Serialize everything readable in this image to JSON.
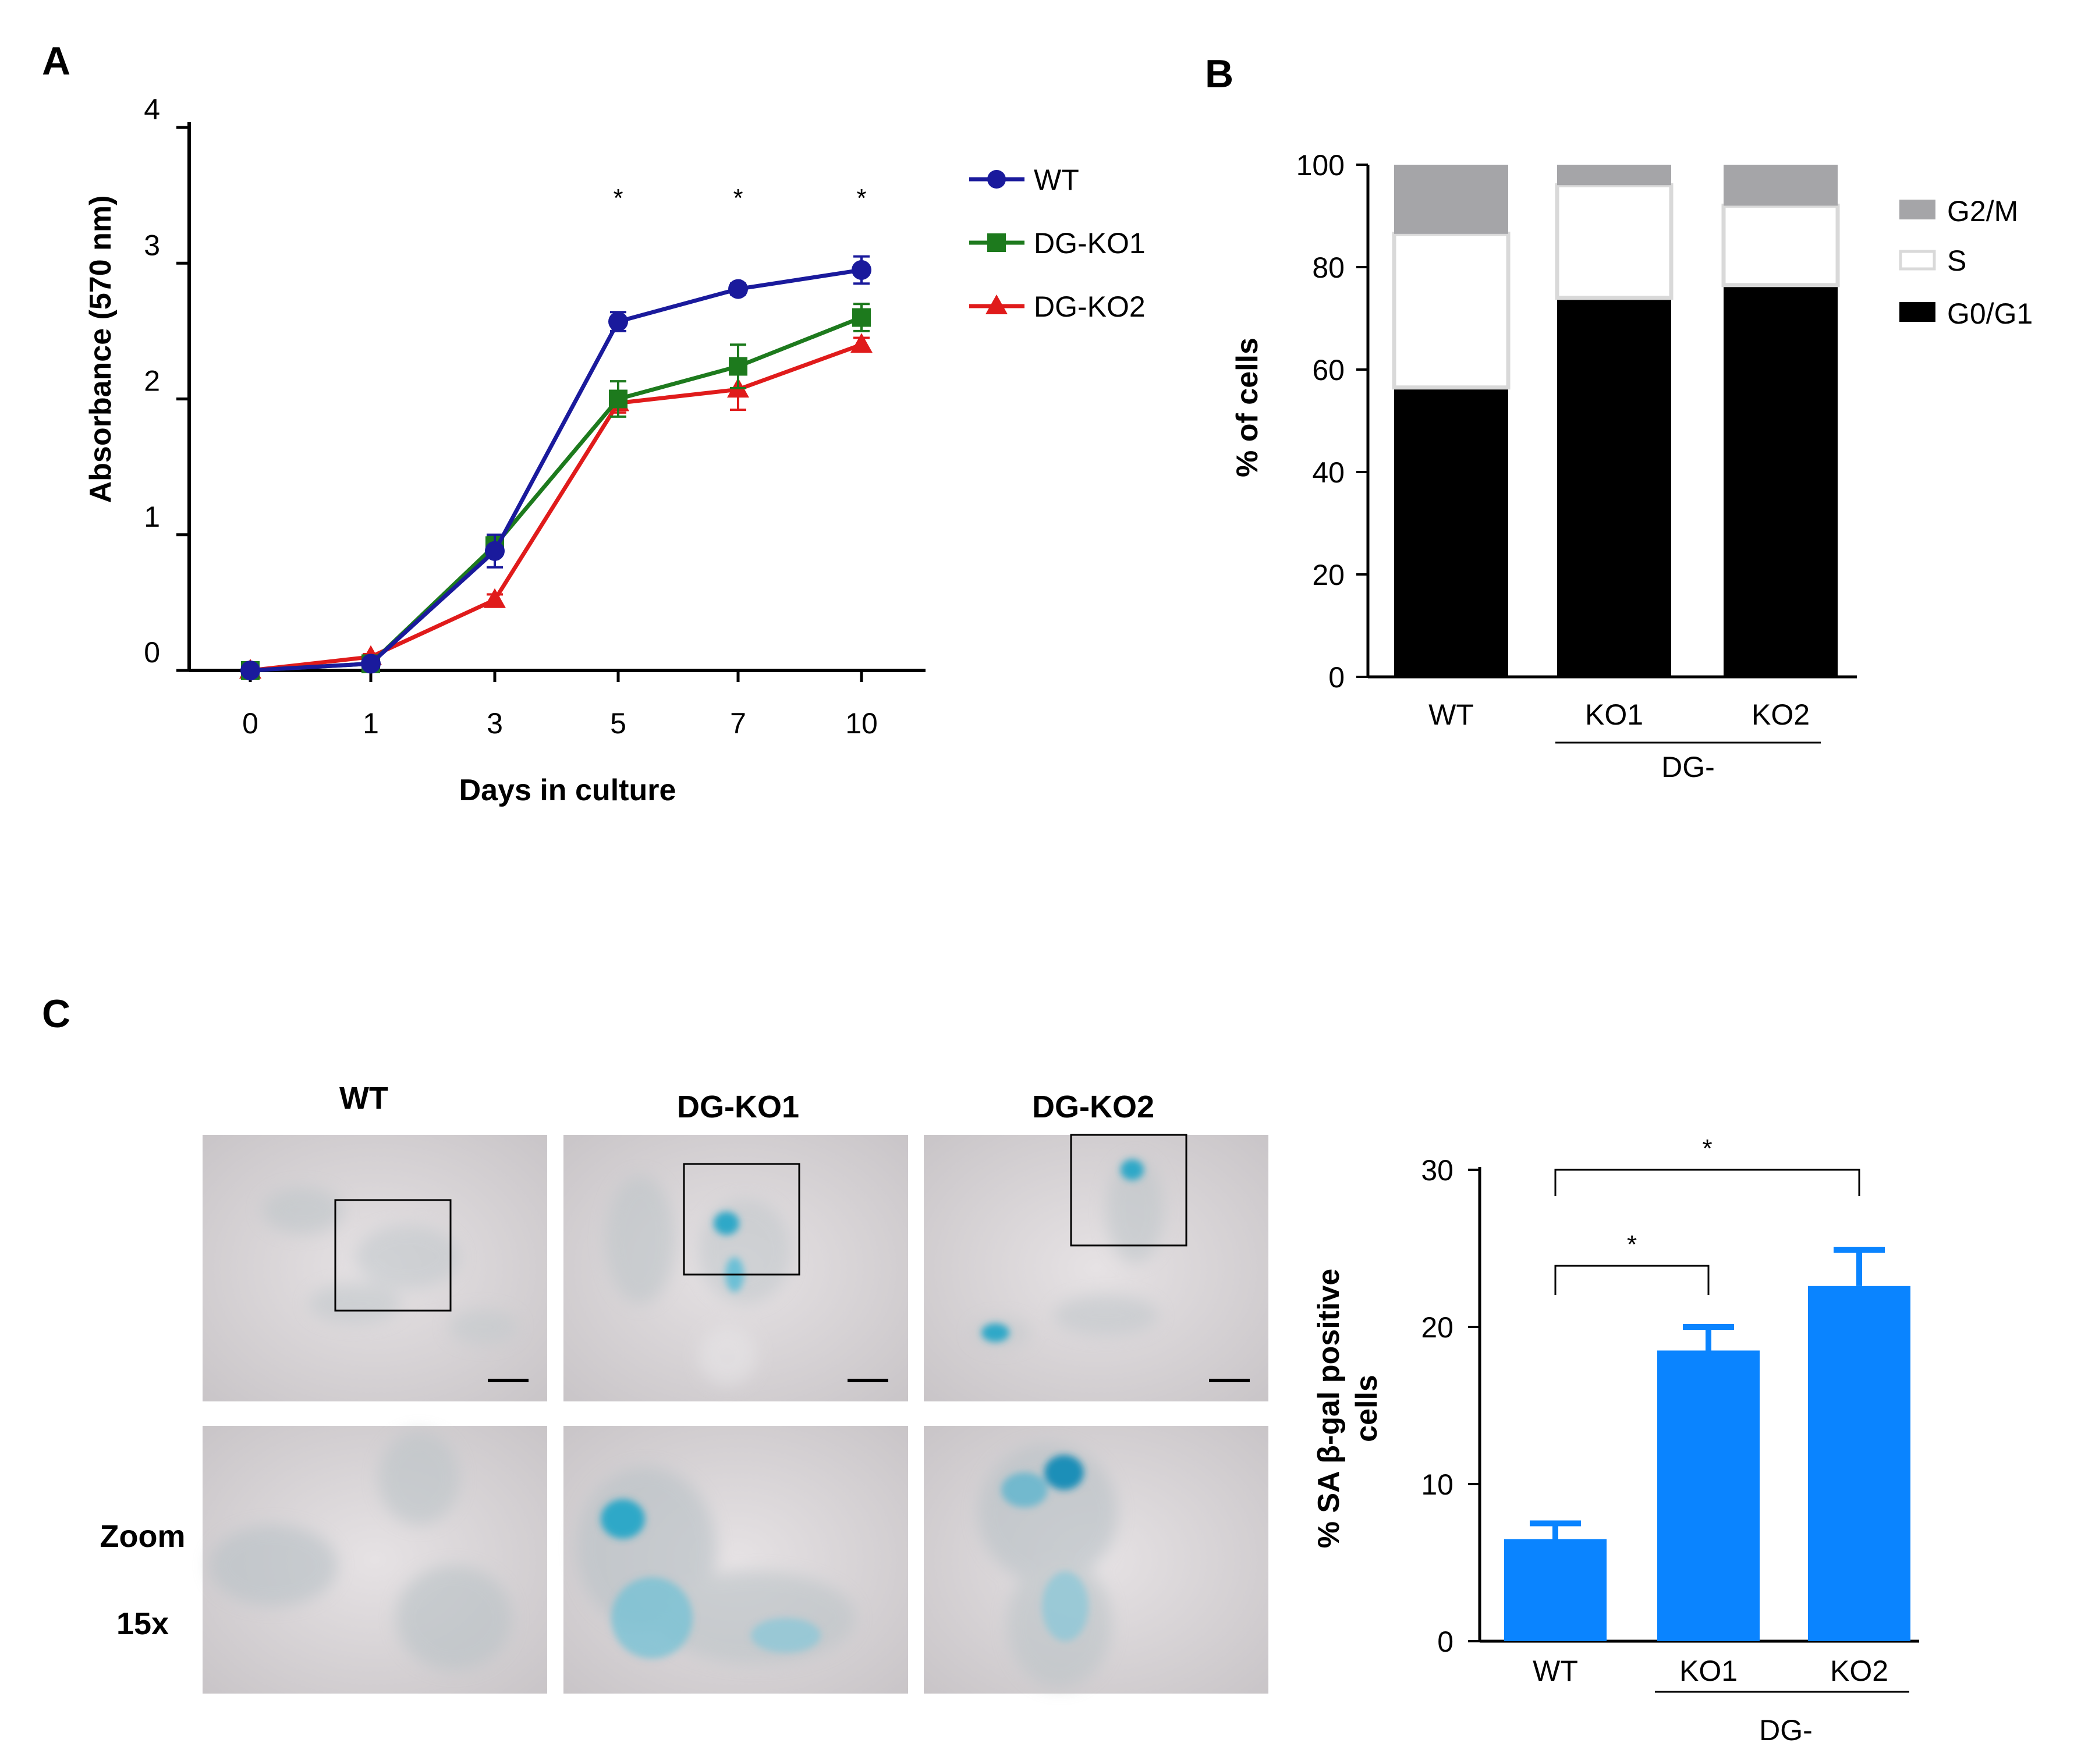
{
  "panels": {
    "a": "A",
    "b": "B",
    "c": "C"
  },
  "colors": {
    "wt": "#1a1a9c",
    "ko1": "#1d7a1d",
    "ko2": "#e01b1b",
    "g2m": "#a5a5a8",
    "s_phase": "#ffffff",
    "s_phase_edge": "#d9d9d9",
    "g0g1": "#000000",
    "sagal": "#0a84ff",
    "micro_bg": "#d8d4d6",
    "stain": "#2ea8c8"
  },
  "chart_data": [
    {
      "id": "growth-curve",
      "type": "line",
      "title": "",
      "xlabel": "Days in culture",
      "ylabel": "Absorbance (570 nm)",
      "categories": [
        "0",
        "1",
        "3",
        "5",
        "7",
        "10"
      ],
      "ylim": [
        0,
        4
      ],
      "yticks": [
        "0",
        "1",
        "2",
        "3",
        "4"
      ],
      "legend_position": "right",
      "series": [
        {
          "name": "WT",
          "marker": "circle",
          "values": [
            0.0,
            0.05,
            0.88,
            2.57,
            2.81,
            2.95
          ],
          "errors": [
            0.03,
            0.02,
            0.12,
            0.07,
            0.04,
            0.1
          ]
        },
        {
          "name": "DG-KO1",
          "marker": "square",
          "values": [
            0.0,
            0.05,
            0.92,
            2.0,
            2.24,
            2.6
          ],
          "errors": [
            0.03,
            0.02,
            0.07,
            0.13,
            0.16,
            0.1
          ]
        },
        {
          "name": "DG-KO2",
          "marker": "triangle",
          "values": [
            0.0,
            0.1,
            0.52,
            1.97,
            2.07,
            2.4
          ],
          "errors": [
            0.02,
            0.02,
            0.04,
            0.07,
            0.15,
            0.05
          ]
        }
      ],
      "significance": [
        {
          "category": "5",
          "label": "*"
        },
        {
          "category": "7",
          "label": "*"
        },
        {
          "category": "10",
          "label": "*"
        }
      ]
    },
    {
      "id": "cell-cycle",
      "type": "bar",
      "stacked": true,
      "title": "",
      "xlabel": "",
      "ylabel": "% of cells",
      "categories": [
        "WT",
        "KO1",
        "KO2"
      ],
      "group_label": "DG-",
      "ylim": [
        0,
        100
      ],
      "yticks": [
        "0",
        "20",
        "40",
        "60",
        "80",
        "100"
      ],
      "legend_position": "right",
      "series": [
        {
          "name": "G0/G1",
          "values": [
            56.5,
            74,
            76.5
          ]
        },
        {
          "name": "S",
          "values": [
            30,
            22,
            15.5
          ]
        },
        {
          "name": "G2/M",
          "values": [
            13.5,
            4,
            8
          ]
        }
      ],
      "legend_order": [
        "G2/M",
        "S",
        "G0/G1"
      ]
    },
    {
      "id": "sa-beta-gal",
      "type": "bar",
      "title": "",
      "xlabel": "",
      "ylabel_line1": "% SA β-gal positive",
      "ylabel_line2": "cells",
      "categories": [
        "WT",
        "KO1",
        "KO2"
      ],
      "group_label": "DG-",
      "ylim": [
        0,
        30
      ],
      "yticks": [
        "0",
        "10",
        "20",
        "30"
      ],
      "values": [
        6.5,
        18.5,
        22.6
      ],
      "errors": [
        1.0,
        1.5,
        2.3
      ],
      "significance": [
        {
          "from": "WT",
          "to": "KO1",
          "label": "*"
        },
        {
          "from": "WT",
          "to": "KO2",
          "label": "*"
        }
      ]
    }
  ],
  "micrographs": {
    "column_labels": [
      "WT",
      "DG-KO1",
      "DG-KO2"
    ],
    "row_label_line1": "Zoom",
    "row_label_line2": "15x"
  }
}
